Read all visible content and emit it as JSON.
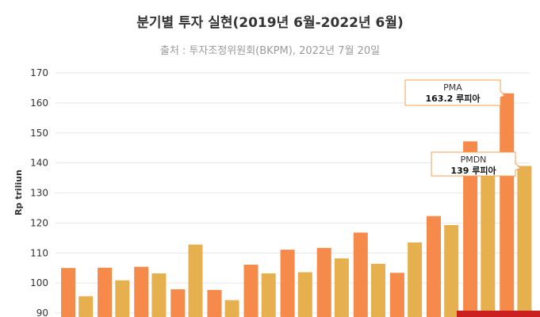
{
  "chart_data": {
    "type": "bar",
    "title": "분기별 투자 실현(2019년 6월-2022년 6월)",
    "subtitle": "출처 : 투자조정위원회(BKPM), 2022년 7월 20일",
    "ylabel": "Rp triliun",
    "ylim": [
      90,
      170
    ],
    "yticks": [
      90,
      100,
      110,
      120,
      130,
      140,
      150,
      160,
      170
    ],
    "grid": true,
    "series": [
      {
        "name": "PMA",
        "color": "#f58a4b",
        "values": [
          105.0,
          105.1,
          105.4,
          97.9,
          97.7,
          106.1,
          111.1,
          111.7,
          116.8,
          103.4,
          122.3,
          147.2,
          163.2
        ]
      },
      {
        "name": "PMDN",
        "color": "#e7b04f",
        "values": [
          95.6,
          100.9,
          103.2,
          112.8,
          94.3,
          103.2,
          103.6,
          108.2,
          106.4,
          113.5,
          119.3,
          135.9,
          139.0
        ]
      }
    ],
    "annotations": [
      {
        "series": "PMA",
        "value_label": "163.2 루피아"
      },
      {
        "series": "PMDN",
        "value_label": "139 루피아"
      }
    ]
  }
}
